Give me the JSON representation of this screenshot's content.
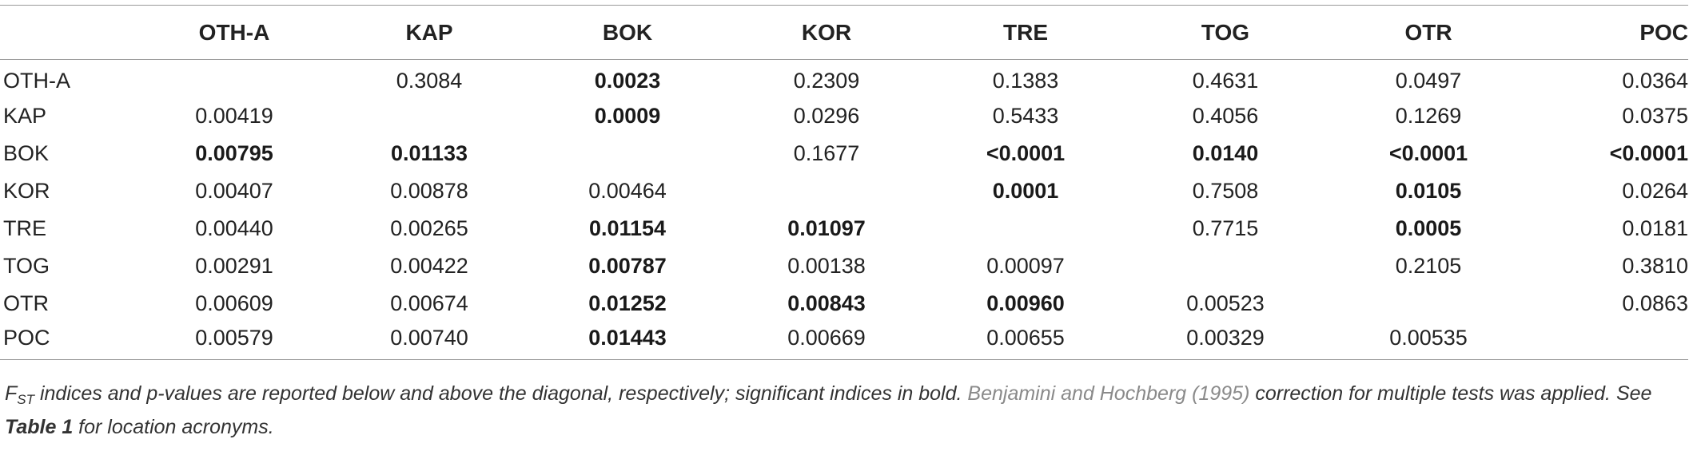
{
  "table": {
    "corner": "",
    "columns": [
      "OTH-A",
      "KAP",
      "BOK",
      "KOR",
      "TRE",
      "TOG",
      "OTR",
      "POC"
    ],
    "rows": [
      {
        "label": "OTH-A",
        "cells": [
          {
            "v": "",
            "b": false
          },
          {
            "v": "0.3084",
            "b": false
          },
          {
            "v": "0.0023",
            "b": true
          },
          {
            "v": "0.2309",
            "b": false
          },
          {
            "v": "0.1383",
            "b": false
          },
          {
            "v": "0.4631",
            "b": false
          },
          {
            "v": "0.0497",
            "b": false
          },
          {
            "v": "0.0364",
            "b": false
          }
        ]
      },
      {
        "label": "KAP",
        "cells": [
          {
            "v": "0.00419",
            "b": false
          },
          {
            "v": "",
            "b": false
          },
          {
            "v": "0.0009",
            "b": true
          },
          {
            "v": "0.0296",
            "b": false
          },
          {
            "v": "0.5433",
            "b": false
          },
          {
            "v": "0.4056",
            "b": false
          },
          {
            "v": "0.1269",
            "b": false
          },
          {
            "v": "0.0375",
            "b": false
          }
        ]
      },
      {
        "label": "BOK",
        "cells": [
          {
            "v": "0.00795",
            "b": true
          },
          {
            "v": "0.01133",
            "b": true
          },
          {
            "v": "",
            "b": false
          },
          {
            "v": "0.1677",
            "b": false
          },
          {
            "v": "<0.0001",
            "b": true
          },
          {
            "v": "0.0140",
            "b": true
          },
          {
            "v": "<0.0001",
            "b": true
          },
          {
            "v": "<0.0001",
            "b": true
          }
        ]
      },
      {
        "label": "KOR",
        "cells": [
          {
            "v": "0.00407",
            "b": false
          },
          {
            "v": "0.00878",
            "b": false
          },
          {
            "v": "0.00464",
            "b": false
          },
          {
            "v": "",
            "b": false
          },
          {
            "v": "0.0001",
            "b": true
          },
          {
            "v": "0.7508",
            "b": false
          },
          {
            "v": "0.0105",
            "b": true
          },
          {
            "v": "0.0264",
            "b": false
          }
        ]
      },
      {
        "label": "TRE",
        "cells": [
          {
            "v": "0.00440",
            "b": false
          },
          {
            "v": "0.00265",
            "b": false
          },
          {
            "v": "0.01154",
            "b": true
          },
          {
            "v": "0.01097",
            "b": true
          },
          {
            "v": "",
            "b": false
          },
          {
            "v": "0.7715",
            "b": false
          },
          {
            "v": "0.0005",
            "b": true
          },
          {
            "v": "0.0181",
            "b": false
          }
        ]
      },
      {
        "label": "TOG",
        "cells": [
          {
            "v": "0.00291",
            "b": false
          },
          {
            "v": "0.00422",
            "b": false
          },
          {
            "v": "0.00787",
            "b": true
          },
          {
            "v": "0.00138",
            "b": false
          },
          {
            "v": "0.00097",
            "b": false
          },
          {
            "v": "",
            "b": false
          },
          {
            "v": "0.2105",
            "b": false
          },
          {
            "v": "0.3810",
            "b": false
          }
        ]
      },
      {
        "label": "OTR",
        "cells": [
          {
            "v": "0.00609",
            "b": false
          },
          {
            "v": "0.00674",
            "b": false
          },
          {
            "v": "0.01252",
            "b": true
          },
          {
            "v": "0.00843",
            "b": true
          },
          {
            "v": "0.00960",
            "b": true
          },
          {
            "v": "0.00523",
            "b": false
          },
          {
            "v": "",
            "b": false
          },
          {
            "v": "0.0863",
            "b": false
          }
        ]
      },
      {
        "label": "POC",
        "cells": [
          {
            "v": "0.00579",
            "b": false
          },
          {
            "v": "0.00740",
            "b": false
          },
          {
            "v": "0.01443",
            "b": true
          },
          {
            "v": "0.00669",
            "b": false
          },
          {
            "v": "0.00655",
            "b": false
          },
          {
            "v": "0.00329",
            "b": false
          },
          {
            "v": "0.00535",
            "b": false
          },
          {
            "v": "",
            "b": false
          }
        ]
      }
    ]
  },
  "footnote": {
    "symbol_main": "F",
    "symbol_sub": "ST",
    "text_1": " indices and p-values are reported below and above the diagonal, respectively; significant indices in bold. ",
    "citation": "Benjamini and Hochberg (1995)",
    "text_2": " correction for multiple tests was applied. See ",
    "table_ref": "Table 1",
    "text_3": " for location acronyms."
  },
  "colors": {
    "rule": "#9a9a9a",
    "text": "#222222",
    "citation": "#8a8a8a"
  }
}
